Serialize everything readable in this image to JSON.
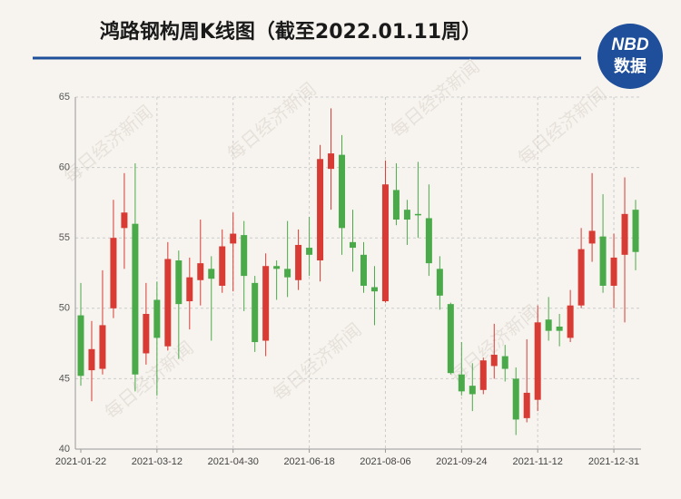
{
  "chart_data": {
    "type": "candlestick",
    "title": "鸿路钢构周K线图（截至2022.01.11周）",
    "logo": {
      "top": "NBD",
      "bottom": "数据"
    },
    "watermark": "每日经济新闻",
    "categories": [
      "2021-01-22",
      null,
      null,
      null,
      null,
      null,
      null,
      "2021-03-12",
      null,
      null,
      null,
      null,
      null,
      null,
      "2021-04-30",
      null,
      null,
      null,
      null,
      null,
      null,
      "2021-06-18",
      null,
      null,
      null,
      null,
      null,
      null,
      "2021-08-06",
      null,
      null,
      null,
      null,
      null,
      null,
      "2021-09-24",
      null,
      null,
      null,
      null,
      null,
      null,
      "2021-11-12",
      null,
      null,
      null,
      null,
      null,
      null,
      "2021-12-31",
      null,
      null
    ],
    "open": [
      49.5,
      45.6,
      45.7,
      50.0,
      55.7,
      56.0,
      46.8,
      50.6,
      47.3,
      53.4,
      50.5,
      52.0,
      52.8,
      51.6,
      54.6,
      55.2,
      51.8,
      47.7,
      53.0,
      52.8,
      52.0,
      54.3,
      53.4,
      59.9,
      60.9,
      54.7,
      53.8,
      51.5,
      50.5,
      58.4,
      57.0,
      56.7,
      56.4,
      52.8,
      50.3,
      45.3,
      44.5,
      44.2,
      45.9,
      46.6,
      45.0,
      42.2,
      43.5,
      49.2,
      48.7,
      47.9,
      50.2,
      54.6,
      55.1,
      51.6,
      53.8,
      57.0
    ],
    "close": [
      45.2,
      47.1,
      48.8,
      55.0,
      56.8,
      45.3,
      49.6,
      47.9,
      53.5,
      50.3,
      52.2,
      53.2,
      52.1,
      54.4,
      55.3,
      52.3,
      47.6,
      53.0,
      52.8,
      52.2,
      54.5,
      53.8,
      60.6,
      61.0,
      55.7,
      54.3,
      51.6,
      51.2,
      58.8,
      56.3,
      56.3,
      56.6,
      53.2,
      50.9,
      45.4,
      44.1,
      43.9,
      46.3,
      46.7,
      45.7,
      42.1,
      44.0,
      49.0,
      48.4,
      48.4,
      50.2,
      54.2,
      55.5,
      51.6,
      53.6,
      56.7,
      54.0
    ],
    "low": [
      44.5,
      43.4,
      45.3,
      49.3,
      52.8,
      44.1,
      46.0,
      43.8,
      47.0,
      46.4,
      48.5,
      50.2,
      47.7,
      51.1,
      51.2,
      49.8,
      46.9,
      46.6,
      50.6,
      50.8,
      51.3,
      52.3,
      51.9,
      57.0,
      53.8,
      52.6,
      51.1,
      48.8,
      50.4,
      55.9,
      54.5,
      55.0,
      52.3,
      49.9,
      45.3,
      43.8,
      42.7,
      43.9,
      45.0,
      44.8,
      41.0,
      41.9,
      42.7,
      47.7,
      47.3,
      47.6,
      50.0,
      53.3,
      51.1,
      50.0,
      49.0,
      52.7
    ],
    "high": [
      51.8,
      49.1,
      52.7,
      57.7,
      59.6,
      60.3,
      51.8,
      51.9,
      54.7,
      54.1,
      53.6,
      56.3,
      53.7,
      55.6,
      56.8,
      56.2,
      52.3,
      53.9,
      53.4,
      56.2,
      55.6,
      56.5,
      61.6,
      64.2,
      62.3,
      57.0,
      54.7,
      53.0,
      60.5,
      60.3,
      57.7,
      60.4,
      58.8,
      53.7,
      50.4,
      47.6,
      46.1,
      46.5,
      48.9,
      47.4,
      45.8,
      47.8,
      50.2,
      50.8,
      49.6,
      51.3,
      55.7,
      59.6,
      58.1,
      55.3,
      59.3,
      57.7
    ],
    "up_color": "#d83a34",
    "down_color": "#4aaa4a",
    "ylim": [
      40,
      65
    ],
    "yticks": [
      40,
      45,
      50,
      55,
      60,
      65
    ],
    "grid": true
  }
}
